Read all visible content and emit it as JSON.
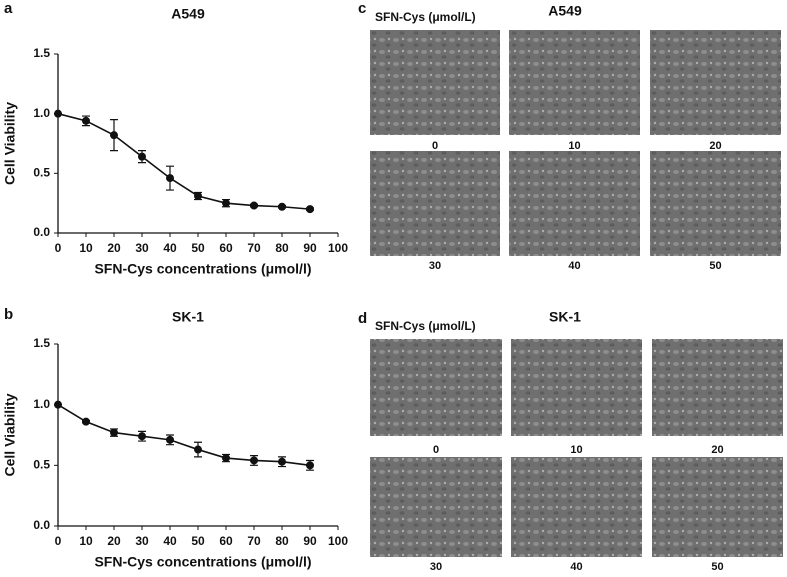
{
  "chart_data": [
    {
      "type": "line",
      "title": "A549",
      "xlabel": "SFN-Cys concentrations (μmol/l)",
      "ylabel": "Cell Viability",
      "x": [
        0,
        10,
        20,
        30,
        40,
        50,
        60,
        70,
        80,
        90
      ],
      "series": [
        {
          "color": "#111111",
          "values": [
            1.0,
            0.94,
            0.82,
            0.64,
            0.46,
            0.31,
            0.25,
            0.23,
            0.22,
            0.2
          ],
          "errors": [
            0,
            0.04,
            0.13,
            0.05,
            0.1,
            0.03,
            0.03,
            0.01,
            0.01,
            0.01
          ]
        }
      ],
      "xlim": [
        0,
        100
      ],
      "xticks": [
        0,
        10,
        20,
        30,
        40,
        50,
        60,
        70,
        80,
        90,
        100
      ],
      "ylim": [
        0,
        1.5
      ],
      "yticks": [
        {
          "value": 0,
          "label": "0.0"
        },
        0.5,
        {
          "value": 1,
          "label": "1.0"
        },
        1.5
      ],
      "grid": false
    },
    {
      "type": "line",
      "title": "SK-1",
      "xlabel": "SFN-Cys concentrations (μmol/l)",
      "ylabel": "Cell Viability",
      "x": [
        0,
        10,
        20,
        30,
        40,
        50,
        60,
        70,
        80,
        90
      ],
      "series": [
        {
          "color": "#111111",
          "values": [
            1.0,
            0.86,
            0.77,
            0.74,
            0.71,
            0.63,
            0.56,
            0.54,
            0.53,
            0.5
          ],
          "errors": [
            0,
            0.01,
            0.03,
            0.04,
            0.04,
            0.06,
            0.03,
            0.04,
            0.04,
            0.04
          ]
        }
      ],
      "xlim": [
        0,
        100
      ],
      "xticks": [
        0,
        10,
        20,
        30,
        40,
        50,
        60,
        70,
        80,
        90,
        100
      ],
      "ylim": [
        0,
        1.5
      ],
      "yticks": [
        {
          "value": 0,
          "label": "0.0"
        },
        0.5,
        {
          "value": 1,
          "label": "1.0"
        },
        1.5
      ],
      "grid": false
    }
  ],
  "panel_labels": [
    "a",
    "b",
    "c",
    "d"
  ],
  "image_panels": [
    {
      "title": "A549",
      "subtitle": "SFN-Cys (μmol/L)",
      "labels": [
        "0",
        "10",
        "20",
        "30",
        "40",
        "50"
      ]
    },
    {
      "title": "SK-1",
      "subtitle": "SFN-Cys (μmol/L)",
      "labels": [
        "0",
        "10",
        "20",
        "30",
        "40",
        "50"
      ]
    }
  ]
}
